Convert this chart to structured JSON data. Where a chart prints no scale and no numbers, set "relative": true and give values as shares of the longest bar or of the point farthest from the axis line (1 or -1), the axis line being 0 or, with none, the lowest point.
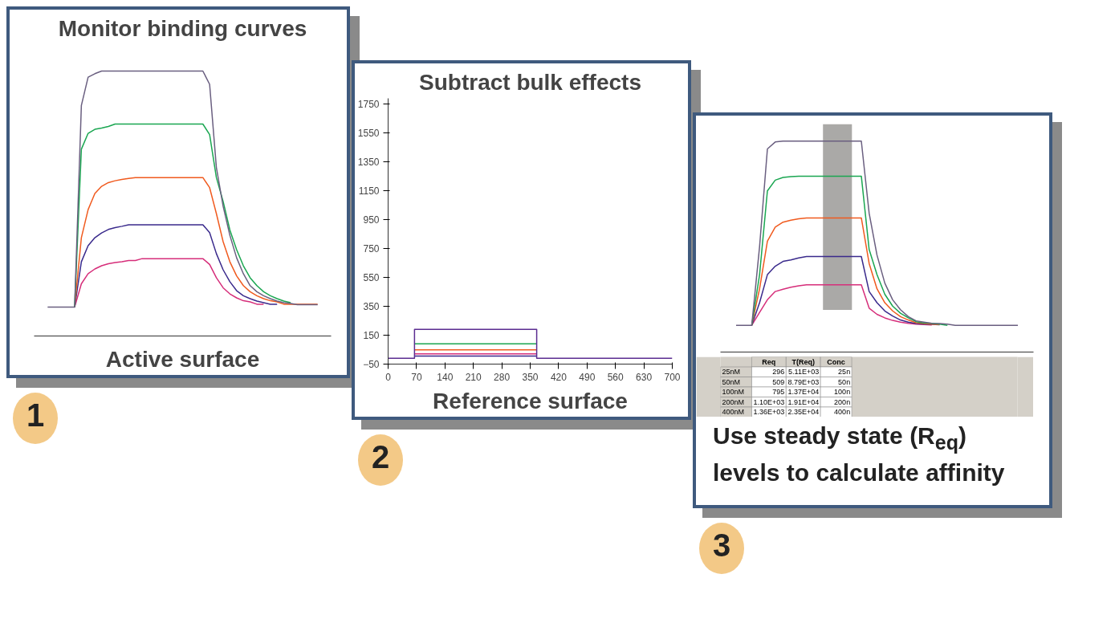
{
  "chart_data": [
    {
      "type": "line",
      "title": "Monitor binding curves",
      "relative": true,
      "annotations": [
        "Active surface",
        "1"
      ],
      "categories": [
        null,
        null,
        null,
        null,
        null,
        null,
        null,
        null,
        null,
        null,
        null,
        null,
        null,
        null,
        null,
        null,
        null,
        null,
        null,
        null,
        null,
        null,
        null,
        null,
        null,
        null,
        null,
        null,
        null,
        null,
        null,
        null,
        null,
        null,
        null,
        null,
        null,
        null,
        null,
        null,
        null
      ],
      "series": [
        {
          "color": "#6a5f80",
          "values": [
            0.109,
            0.109,
            0.109,
            0.109,
            0.109,
            0.87,
            0.977,
            0.99,
            1,
            1,
            1,
            1,
            1,
            1,
            1,
            1,
            1,
            1,
            1,
            1,
            1,
            1,
            1,
            1,
            0.95,
            0.636,
            0.49,
            0.38,
            0.295,
            0.235,
            0.19,
            0.167,
            0.152,
            0.141,
            0.132,
            0.126,
            0.123,
            0.118,
            0.118,
            0.118,
            0.118
          ]
        },
        {
          "color": "#1aa651",
          "values": [
            null,
            null,
            null,
            null,
            0.109,
            0.705,
            0.765,
            0.78,
            0.785,
            0.791,
            0.8,
            0.8,
            0.8,
            0.8,
            0.8,
            0.8,
            0.8,
            0.8,
            0.8,
            0.8,
            0.8,
            0.8,
            0.8,
            0.8,
            0.76,
            0.598,
            0.508,
            0.4,
            0.326,
            0.265,
            0.22,
            0.19,
            0.167,
            0.152,
            0.141,
            0.132,
            0.126,
            null,
            null,
            null,
            null
          ]
        },
        {
          "color": "#f05a1e",
          "values": [
            null,
            null,
            null,
            null,
            0.109,
            0.371,
            0.477,
            0.538,
            0.565,
            0.579,
            0.586,
            0.591,
            0.595,
            0.598,
            0.598,
            0.598,
            0.598,
            0.598,
            0.598,
            0.598,
            0.598,
            0.598,
            0.598,
            0.598,
            0.56,
            0.462,
            0.356,
            0.28,
            0.227,
            0.19,
            0.167,
            0.152,
            0.141,
            0.133,
            0.129,
            0.12,
            0.12,
            0.12,
            0.12,
            0.12,
            0.12
          ]
        },
        {
          "color": "#3a2a8c",
          "values": [
            null,
            null,
            null,
            null,
            0.109,
            0.28,
            0.341,
            0.371,
            0.389,
            0.402,
            0.409,
            0.414,
            0.42,
            0.42,
            0.42,
            0.42,
            0.42,
            0.42,
            0.42,
            0.42,
            0.42,
            0.42,
            0.42,
            0.42,
            0.39,
            0.311,
            0.25,
            0.205,
            0.171,
            0.152,
            0.141,
            0.132,
            0.126,
            0.12,
            0.12,
            null,
            null,
            null,
            null,
            null,
            null
          ]
        },
        {
          "color": "#d62e7a",
          "values": [
            null,
            null,
            null,
            null,
            0.109,
            0.197,
            0.235,
            0.253,
            0.265,
            0.273,
            0.277,
            0.28,
            0.285,
            0.285,
            0.292,
            0.292,
            0.292,
            0.292,
            0.292,
            0.292,
            0.292,
            0.292,
            0.292,
            0.292,
            0.27,
            0.22,
            0.182,
            0.159,
            0.144,
            0.133,
            0.129,
            0.12,
            0.12,
            null,
            null,
            null,
            null,
            null,
            null,
            null,
            null
          ]
        }
      ]
    },
    {
      "type": "line",
      "title": "Subtract bulk effects",
      "annotations": [
        "Reference surface",
        "2"
      ],
      "xlim": [
        0,
        700
      ],
      "xticks": [
        0,
        70,
        140,
        210,
        280,
        350,
        420,
        490,
        560,
        630,
        700
      ],
      "ylim": [
        -50,
        1790
      ],
      "yticks": [
        -50,
        150,
        350,
        550,
        750,
        950,
        1150,
        1350,
        1550,
        1750
      ],
      "series": [
        {
          "color": "#5b2c91",
          "x": [
            0,
            65,
            65,
            366,
            366,
            700
          ],
          "values": [
            -10,
            -10,
            190,
            190,
            -10,
            -10
          ]
        },
        {
          "color": "#1aa651",
          "x": [
            65,
            366
          ],
          "values": [
            91,
            91
          ]
        },
        {
          "color": "#f05a1e",
          "x": [
            65,
            366
          ],
          "values": [
            49,
            49
          ]
        },
        {
          "color": "#d62e7a",
          "x": [
            65,
            366
          ],
          "values": [
            21,
            21
          ]
        },
        {
          "color": "#3a2a8c",
          "x": [
            65,
            366
          ],
          "values": [
            6,
            6
          ]
        }
      ]
    },
    {
      "type": "line",
      "relative": true,
      "annotations": [
        "Use steady state (R$_{eq}$) levels to calculate affinity",
        "3"
      ],
      "categories": [
        null,
        null,
        null,
        null,
        null,
        null,
        null,
        null,
        null,
        null,
        null,
        null,
        null,
        null,
        null,
        null,
        null,
        null,
        null,
        null,
        null,
        null,
        null,
        null,
        null,
        null,
        null,
        null,
        null,
        null,
        null,
        null,
        null,
        null,
        null,
        null,
        null
      ],
      "series": [
        {
          "color": "#6a5f80",
          "values": [
            0.127,
            0.127,
            0.127,
            0.5,
            0.963,
            0.996,
            1,
            1,
            1,
            1,
            1,
            1,
            1,
            1,
            1,
            1,
            1,
            0.658,
            0.46,
            0.327,
            0.248,
            0.201,
            0.168,
            0.148,
            0.142,
            0.136,
            0.135,
            0.132,
            0.127,
            0.127,
            0.127,
            0.127,
            0.127,
            0.127,
            0.127,
            0.127,
            0.127
          ]
        },
        {
          "color": "#1aa651",
          "values": [
            null,
            null,
            0.127,
            0.367,
            0.764,
            0.815,
            0.828,
            0.832,
            0.834,
            0.834,
            0.834,
            0.834,
            0.834,
            0.834,
            0.834,
            0.834,
            0.834,
            0.486,
            0.367,
            0.274,
            0.218,
            0.184,
            0.162,
            0.144,
            0.138,
            0.136,
            0.132,
            0.127,
            null,
            null,
            null,
            null,
            null,
            null,
            null,
            null,
            null
          ]
        },
        {
          "color": "#f05a1e",
          "values": [
            null,
            null,
            0.127,
            0.3,
            0.526,
            0.592,
            0.616,
            0.625,
            0.632,
            0.636,
            0.636,
            0.636,
            0.636,
            0.636,
            0.636,
            0.636,
            0.636,
            0.42,
            0.3,
            0.234,
            0.195,
            0.168,
            0.152,
            0.139,
            0.135,
            0.132,
            0.13,
            null,
            null,
            null,
            null,
            null,
            null,
            null,
            null,
            null,
            null
          ]
        },
        {
          "color": "#3a2a8c",
          "values": [
            null,
            null,
            0.127,
            0.234,
            0.367,
            0.407,
            0.43,
            0.437,
            0.446,
            0.453,
            0.453,
            0.453,
            0.453,
            0.453,
            0.453,
            0.453,
            0.453,
            0.287,
            0.234,
            0.195,
            0.171,
            0.152,
            0.142,
            0.135,
            0.132,
            0.131,
            0.129,
            null,
            null,
            null,
            null,
            null,
            null,
            null,
            null,
            null,
            null
          ]
        },
        {
          "color": "#d62e7a",
          "values": [
            null,
            null,
            0.127,
            0.188,
            0.248,
            0.287,
            0.298,
            0.307,
            0.314,
            0.319,
            0.319,
            0.319,
            0.319,
            0.319,
            0.319,
            0.319,
            0.319,
            0.208,
            0.179,
            0.162,
            0.15,
            0.142,
            0.136,
            0.132,
            0.13,
            0.128,
            null,
            null,
            null,
            null,
            null,
            null,
            null,
            null,
            null,
            null,
            null
          ]
        }
      ]
    },
    {
      "type": "other",
      "categories": [
        "Req",
        "T(Req)",
        "Conc"
      ],
      "y_categories": [
        "25nM",
        "50nM",
        "100nM",
        "200nM",
        "400nM"
      ],
      "cell_labels": [
        [
          "296",
          "5.11E+03",
          "25n"
        ],
        [
          "509",
          "8.79E+03",
          "50n"
        ],
        [
          "795",
          "1.37E+04",
          "100n"
        ],
        [
          "1.10E+03",
          "1.91E+04",
          "200n"
        ],
        [
          "1.36E+03",
          "2.35E+04",
          "400n"
        ]
      ]
    }
  ]
}
